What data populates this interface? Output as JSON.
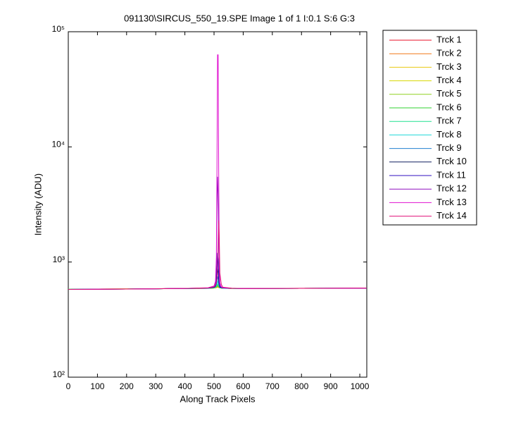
{
  "chart_data": {
    "type": "line",
    "title": "091130\\SIRCUS_550_19.SPE  Image 1 of 1  I:0.1  S:6  G:3",
    "x_label": "Along Track Pixels",
    "y_label": "Intensity (ADU)",
    "log_y": true,
    "xlim": [
      0,
      1024
    ],
    "ylim": [
      100,
      100000
    ],
    "xticks": [
      0,
      100,
      200,
      300,
      400,
      500,
      600,
      700,
      800,
      900,
      1000
    ],
    "yticks": [
      {
        "value": 100,
        "label": "10²"
      },
      {
        "value": 1000,
        "label": "10³"
      },
      {
        "value": 10000,
        "label": "10⁴"
      },
      {
        "value": 100000,
        "label": "10⁵"
      }
    ],
    "x": [
      0,
      100,
      200,
      300,
      400,
      480,
      500,
      505,
      508,
      510,
      512,
      514,
      516,
      518,
      520,
      525,
      530,
      560,
      600,
      700,
      800,
      900,
      1023
    ],
    "series": [
      {
        "name": "Trck 1",
        "color": "#e8102a",
        "values": [
          580,
          583,
          585,
          587,
          590,
          592,
          595,
          598,
          600,
          602,
          604,
          603,
          600,
          598,
          596,
          594,
          592,
          590,
          590,
          590,
          592,
          593,
          595
        ]
      },
      {
        "name": "Trck 2",
        "color": "#f07818",
        "values": [
          579,
          582,
          584,
          586,
          589,
          591,
          594,
          597,
          600,
          603,
          606,
          604,
          601,
          598,
          596,
          594,
          592,
          590,
          589,
          590,
          591,
          592,
          594
        ]
      },
      {
        "name": "Trck 3",
        "color": "#e8c810",
        "values": [
          580,
          582,
          584,
          586,
          589,
          591,
          594,
          598,
          601,
          605,
          608,
          606,
          602,
          599,
          596,
          594,
          592,
          590,
          589,
          590,
          591,
          592,
          593
        ]
      },
      {
        "name": "Trck 4",
        "color": "#d8d800",
        "values": [
          580,
          582,
          584,
          586,
          589,
          591,
          595,
          599,
          603,
          608,
          612,
          609,
          604,
          600,
          597,
          594,
          592,
          590,
          589,
          590,
          591,
          592,
          593
        ]
      },
      {
        "name": "Trck 5",
        "color": "#90d020",
        "values": [
          579,
          582,
          584,
          586,
          589,
          591,
          596,
          600,
          606,
          612,
          618,
          614,
          607,
          601,
          597,
          594,
          592,
          590,
          589,
          590,
          591,
          592,
          593
        ]
      },
      {
        "name": "Trck 6",
        "color": "#30d030",
        "values": [
          579,
          581,
          583,
          586,
          589,
          592,
          597,
          602,
          610,
          620,
          628,
          622,
          611,
          603,
          598,
          595,
          593,
          590,
          589,
          590,
          591,
          592,
          593
        ]
      },
      {
        "name": "Trck 7",
        "color": "#20e090",
        "values": [
          579,
          581,
          583,
          586,
          589,
          592,
          598,
          605,
          616,
          632,
          645,
          635,
          618,
          606,
          599,
          596,
          593,
          590,
          589,
          590,
          591,
          592,
          593
        ]
      },
      {
        "name": "Trck 8",
        "color": "#20d8d8",
        "values": [
          579,
          581,
          583,
          586,
          589,
          592,
          599,
          608,
          625,
          650,
          680,
          660,
          630,
          610,
          601,
          597,
          594,
          591,
          589,
          590,
          591,
          592,
          593
        ]
      },
      {
        "name": "Trck 9",
        "color": "#2080d0",
        "values": [
          578,
          581,
          583,
          586,
          589,
          593,
          601,
          612,
          640,
          690,
          750,
          710,
          650,
          615,
          603,
          598,
          594,
          591,
          589,
          590,
          591,
          592,
          593
        ]
      },
      {
        "name": "Trck 10",
        "color": "#102060",
        "values": [
          578,
          580,
          583,
          586,
          589,
          593,
          603,
          618,
          665,
          760,
          880,
          800,
          690,
          625,
          606,
          599,
          595,
          591,
          589,
          590,
          591,
          592,
          593
        ]
      },
      {
        "name": "Trck 11",
        "color": "#3010c0",
        "values": [
          578,
          580,
          583,
          586,
          589,
          594,
          606,
          628,
          710,
          900,
          1200,
          1050,
          780,
          645,
          612,
          601,
          596,
          591,
          589,
          590,
          591,
          592,
          593
        ]
      },
      {
        "name": "Trck 12",
        "color": "#9010c0",
        "values": [
          578,
          580,
          583,
          586,
          590,
          596,
          612,
          650,
          900,
          3000,
          5500,
          3800,
          1500,
          720,
          625,
          605,
          597,
          592,
          589,
          590,
          591,
          592,
          593
        ]
      },
      {
        "name": "Trck 13",
        "color": "#e010d0",
        "values": [
          578,
          580,
          583,
          586,
          590,
          598,
          620,
          680,
          1100,
          6000,
          63000,
          63000,
          6000,
          1100,
          660,
          610,
          600,
          592,
          589,
          590,
          591,
          592,
          593
        ]
      },
      {
        "name": "Trck 14",
        "color": "#e0107a",
        "values": [
          578,
          580,
          583,
          586,
          590,
          596,
          610,
          630,
          660,
          720,
          900,
          1400,
          2300,
          1600,
          800,
          640,
          605,
          593,
          589,
          590,
          591,
          592,
          594
        ]
      }
    ]
  }
}
